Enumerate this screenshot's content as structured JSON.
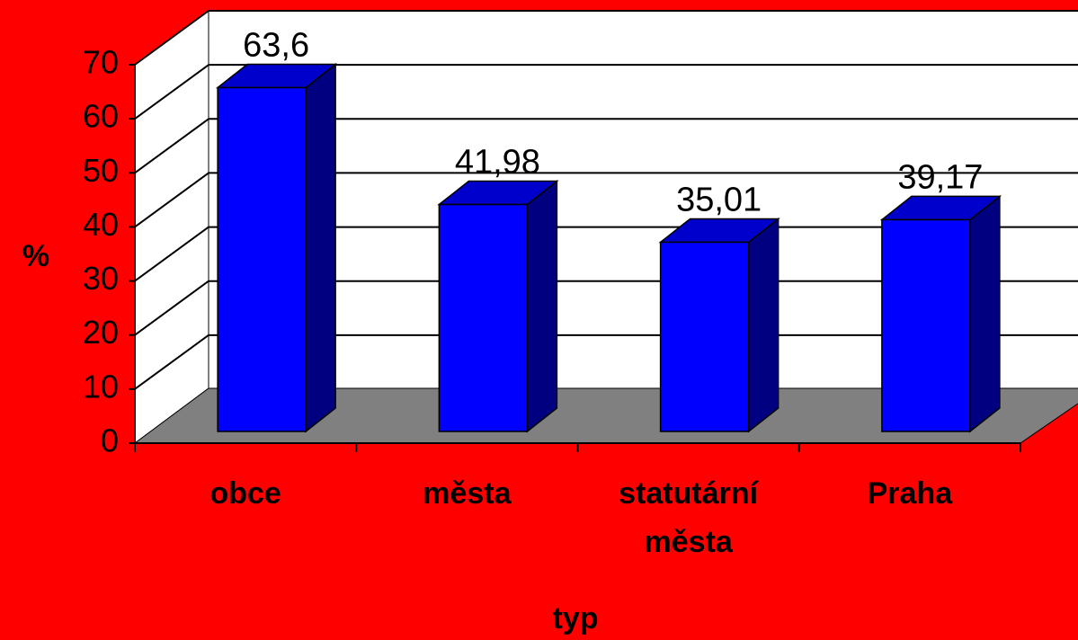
{
  "chart_data": {
    "type": "bar3d",
    "categories": [
      "obce",
      "města",
      "statutární města",
      "Praha"
    ],
    "values": [
      63.6,
      41.98,
      35.01,
      39.17
    ],
    "value_labels": [
      "63,6",
      "41,98",
      "35,01",
      "39,17"
    ],
    "ylim": [
      0,
      70
    ],
    "yticks": [
      0,
      10,
      20,
      30,
      40,
      50,
      60,
      70
    ],
    "x_label": "typ",
    "y_label": "%",
    "color": "#0000ff",
    "side_color": "#000080",
    "top_color": "#0000cc",
    "grid": true
  }
}
